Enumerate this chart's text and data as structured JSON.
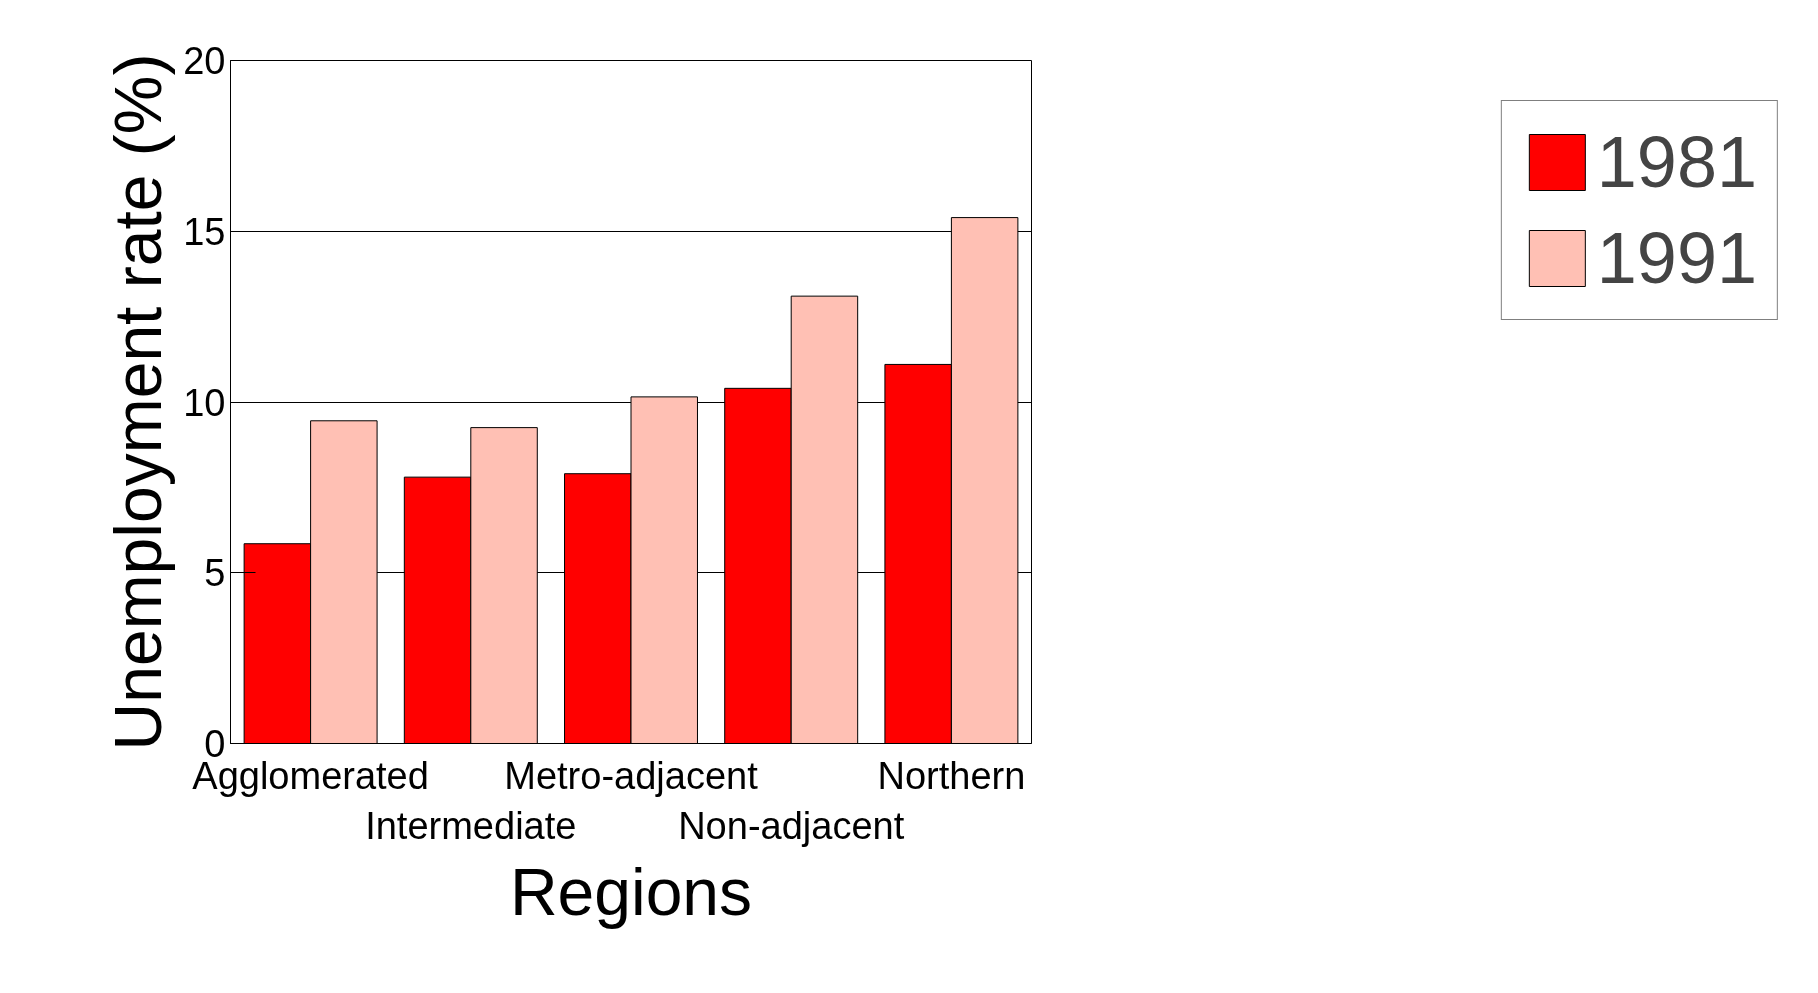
{
  "chart_data": {
    "type": "bar",
    "xlabel": "Regions",
    "ylabel": "Unemployment rate (%)",
    "categories": [
      "Agglomerated",
      "Intermediate",
      "Metro-adjacent",
      "Non-adjacent",
      "Northern"
    ],
    "series": [
      {
        "name": "1981",
        "color": "#ff0000",
        "values": [
          5.85,
          7.8,
          7.9,
          10.4,
          11.1
        ]
      },
      {
        "name": "1991",
        "color": "#ffc0b4",
        "values": [
          9.45,
          9.25,
          10.15,
          13.1,
          15.4
        ]
      }
    ],
    "ylim": [
      0,
      20
    ],
    "yticks": [
      0,
      5,
      10,
      15,
      20
    ],
    "grid": "y",
    "legend": "right"
  }
}
